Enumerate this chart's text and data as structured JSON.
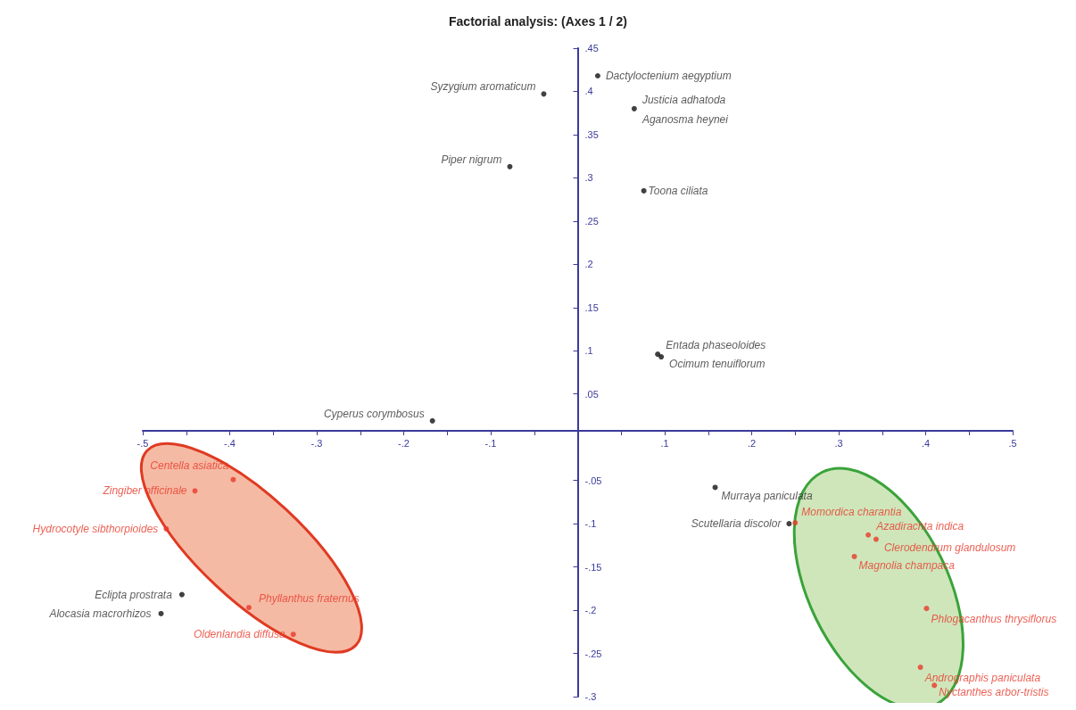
{
  "chart_data": {
    "type": "scatter",
    "title": "Factorial analysis: (Axes 1 / 2)",
    "x": [
      0.023,
      -0.039,
      0.065,
      -0.078,
      0.076,
      0.092,
      0.096,
      -0.167,
      0.158,
      0.243,
      0.25,
      0.334,
      0.343,
      0.318,
      0.401,
      0.394,
      0.41,
      -0.396,
      -0.44,
      -0.473,
      -0.455,
      -0.479,
      -0.378,
      -0.327
    ],
    "values": [
      0.418,
      0.397,
      0.38,
      0.313,
      0.285,
      0.096,
      0.093,
      0.019,
      -0.058,
      -0.1,
      -0.099,
      -0.113,
      -0.118,
      -0.138,
      -0.198,
      -0.266,
      -0.287,
      -0.049,
      -0.062,
      -0.106,
      -0.182,
      -0.204,
      -0.197,
      -0.228
    ],
    "colors": [
      "#111111",
      "#111111",
      "#111111",
      "#111111",
      "#111111",
      "#111111",
      "#111111",
      "#111111",
      "#111111",
      "#111111",
      "#e8392b",
      "#e8392b",
      "#e8392b",
      "#e8392b",
      "#e8392b",
      "#e8392b",
      "#e8392b",
      "#e8392b",
      "#e8392b",
      "#e8392b",
      "#111111",
      "#111111",
      "#e8392b",
      "#e8392b"
    ],
    "marker": "circle",
    "xlim": [
      -0.5,
      0.5
    ],
    "xticks": [
      {
        "value": -0.5,
        "label": "-.5"
      },
      {
        "value": -0.45,
        "label": null
      },
      {
        "value": -0.4,
        "label": "-.4"
      },
      {
        "value": -0.35,
        "label": null
      },
      {
        "value": -0.3,
        "label": "-.3"
      },
      {
        "value": -0.25,
        "label": null
      },
      {
        "value": -0.2,
        "label": "-.2"
      },
      {
        "value": -0.15,
        "label": null
      },
      {
        "value": -0.1,
        "label": "-.1"
      },
      {
        "value": -0.05,
        "label": null
      },
      {
        "value": 0.05,
        "label": null
      },
      {
        "value": 0.1,
        "label": ".1"
      },
      {
        "value": 0.15,
        "label": null
      },
      {
        "value": 0.2,
        "label": ".2"
      },
      {
        "value": 0.25,
        "label": null
      },
      {
        "value": 0.3,
        "label": ".3"
      },
      {
        "value": 0.35,
        "label": null
      },
      {
        "value": 0.4,
        "label": ".4"
      },
      {
        "value": 0.45,
        "label": null
      },
      {
        "value": 0.5,
        "label": ".5"
      }
    ],
    "ylim": [
      -0.3,
      0.45
    ],
    "yticks": [
      {
        "value": 0.45,
        "label": ".45"
      },
      {
        "value": 0.4,
        "label": ".4"
      },
      {
        "value": 0.35,
        "label": ".35"
      },
      {
        "value": 0.3,
        "label": ".3"
      },
      {
        "value": 0.25,
        "label": ".25"
      },
      {
        "value": 0.2,
        "label": ".2"
      },
      {
        "value": 0.15,
        "label": ".15"
      },
      {
        "value": 0.1,
        "label": ".1"
      },
      {
        "value": 0.05,
        "label": ".05"
      },
      {
        "value": -0.05,
        "label": "-.05"
      },
      {
        "value": -0.1,
        "label": "-.1"
      },
      {
        "value": -0.15,
        "label": "-.15"
      },
      {
        "value": -0.2,
        "label": "-.2"
      },
      {
        "value": -0.25,
        "label": "-.25"
      },
      {
        "value": -0.3,
        "label": "-.3"
      }
    ],
    "grid": false,
    "annotations": [
      {
        "text": "Dactyloctenium aegyptium",
        "x": 0.023,
        "y": 0.418
      },
      {
        "text": "Syzygium aromaticum",
        "x": -0.039,
        "y": 0.397
      },
      {
        "text": "Justicia adhatoda",
        "x": 0.065,
        "y": 0.38
      },
      {
        "text": "Aganosma heynei",
        "x": 0.065,
        "y": 0.38
      },
      {
        "text": "Piper nigrum",
        "x": -0.078,
        "y": 0.313
      },
      {
        "text": "Toona ciliata",
        "x": 0.076,
        "y": 0.285
      },
      {
        "text": "Entada phaseoloides",
        "x": 0.092,
        "y": 0.096
      },
      {
        "text": "Ocimum tenuiflorum",
        "x": 0.096,
        "y": 0.093
      },
      {
        "text": "Cyperus corymbosus",
        "x": -0.167,
        "y": 0.019
      },
      {
        "text": "Murraya paniculata",
        "x": 0.158,
        "y": -0.058
      },
      {
        "text": "Scutellaria discolor",
        "x": 0.243,
        "y": -0.1
      },
      {
        "text": "Momordica charantia",
        "x": 0.25,
        "y": -0.099
      },
      {
        "text": "Azadirachta indica",
        "x": 0.334,
        "y": -0.113
      },
      {
        "text": "Clerodendrum glandulosum",
        "x": 0.343,
        "y": -0.118
      },
      {
        "text": "Magnolia champaca",
        "x": 0.318,
        "y": -0.138
      },
      {
        "text": "Phlogacanthus thrysiflorus",
        "x": 0.401,
        "y": -0.198
      },
      {
        "text": "Andrographis paniculata",
        "x": 0.394,
        "y": -0.266
      },
      {
        "text": "Nyctanthes arbor-tristis",
        "x": 0.41,
        "y": -0.287
      },
      {
        "text": "Centella asiatica",
        "x": -0.396,
        "y": -0.049
      },
      {
        "text": "Zingiber officinale",
        "x": -0.44,
        "y": -0.062
      },
      {
        "text": "Hydrocotyle sibthorpioides",
        "x": -0.473,
        "y": -0.106
      },
      {
        "text": "Eclipta prostrata",
        "x": -0.455,
        "y": -0.182
      },
      {
        "text": "Alocasia macrorhizos",
        "x": -0.479,
        "y": -0.204
      },
      {
        "text": "Phyllanthus fraternus",
        "x": -0.378,
        "y": -0.197
      },
      {
        "text": "Oldenlandia diffusa",
        "x": -0.327,
        "y": -0.228
      }
    ]
  }
}
